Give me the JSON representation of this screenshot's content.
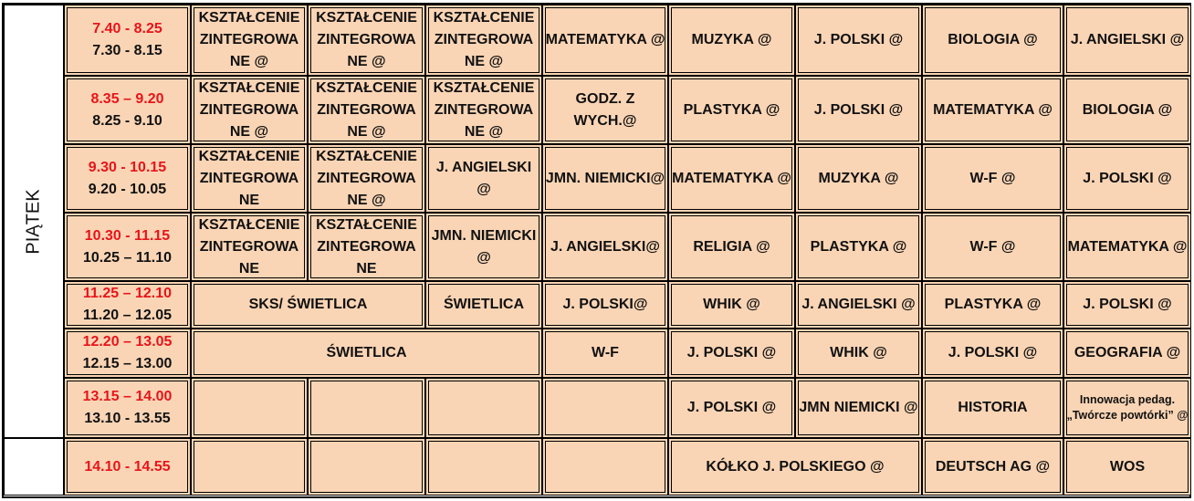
{
  "day_label": "PIĄTEK",
  "colors": {
    "cell_fill": "#FAD5B5",
    "time_red": "#E8141A"
  },
  "rows": [
    {
      "time_red": "7.40 - 8.25",
      "time_black": "7.30 - 8.15",
      "cells": [
        {
          "label": "KSZTAŁCENIE ZINTEGROWA NE @",
          "span": 1
        },
        {
          "label": "KSZTAŁCENIE ZINTEGROWA NE @",
          "span": 1
        },
        {
          "label": "KSZTAŁCENIE ZINTEGROWA NE @",
          "span": 1
        },
        {
          "label": "MATEMATYKA @",
          "span": 1
        },
        {
          "label": "MUZYKA  @",
          "span": 1
        },
        {
          "label": "J. POLSKI  @",
          "span": 1
        },
        {
          "label": "BIOLOGIA  @",
          "span": 1
        },
        {
          "label": "J. ANGIELSKI @",
          "span": 1
        }
      ]
    },
    {
      "time_red": "8.35 – 9.20",
      "time_black": "8.25 - 9.10",
      "cells": [
        {
          "label": "KSZTAŁCENIE ZINTEGROWA NE @",
          "span": 1
        },
        {
          "label": "KSZTAŁCENIE ZINTEGROWA NE @",
          "span": 1
        },
        {
          "label": "KSZTAŁCENIE ZINTEGROWA NE @",
          "span": 1
        },
        {
          "label": "GODZ. Z WYCH.@",
          "span": 1
        },
        {
          "label": "PLASTYKA  @",
          "span": 1
        },
        {
          "label": "J. POLSKI  @",
          "span": 1
        },
        {
          "label": "MATEMATYKA @",
          "span": 1
        },
        {
          "label": "BIOLOGIA  @",
          "span": 1
        }
      ]
    },
    {
      "time_red": "9.30 - 10.15",
      "time_black": "9.20 - 10.05",
      "cells": [
        {
          "label": "KSZTAŁCENIE ZINTEGROWA NE",
          "span": 1
        },
        {
          "label": "KSZTAŁCENIE ZINTEGROWA NE @",
          "span": 1
        },
        {
          "label": "J. ANGIELSKI @",
          "span": 1
        },
        {
          "label": "JMN. NIEMICKI@",
          "span": 1
        },
        {
          "label": "MATEMATYKA @",
          "span": 1
        },
        {
          "label": "MUZYKA  @",
          "span": 1
        },
        {
          "label": "W-F  @",
          "span": 1
        },
        {
          "label": "J. POLSKI  @",
          "span": 1
        }
      ]
    },
    {
      "time_red": "10.30 - 11.15",
      "time_black": "10.25 – 11.10",
      "cells": [
        {
          "label": "KSZTAŁCENIE ZINTEGROWA NE",
          "span": 1
        },
        {
          "label": "KSZTAŁCENIE ZINTEGROWA NE",
          "span": 1
        },
        {
          "label": "JMN. NIEMICKI @",
          "span": 1
        },
        {
          "label": "J. ANGIELSKI@",
          "span": 1
        },
        {
          "label": "RELIGIA  @",
          "span": 1
        },
        {
          "label": "PLASTYKA  @",
          "span": 1
        },
        {
          "label": "W-F  @",
          "span": 1
        },
        {
          "label": "MATEMATYKA @",
          "span": 1
        }
      ]
    },
    {
      "time_red": "11.25 – 12.10",
      "time_black": "11.20 – 12.05",
      "cells": [
        {
          "label": "SKS/ ŚWIETLICA",
          "span": 2
        },
        {
          "label": "ŚWIETLICA",
          "span": 1
        },
        {
          "label": "J. POLSKI@",
          "span": 1
        },
        {
          "label": "WHIK  @",
          "span": 1
        },
        {
          "label": "J. ANGIELSKI  @",
          "span": 1
        },
        {
          "label": "PLASTYKA  @",
          "span": 1
        },
        {
          "label": "J. POLSKI    @",
          "span": 1
        }
      ]
    },
    {
      "time_red": "12.20 – 13.05",
      "time_black": "12.15 – 13.00",
      "cells": [
        {
          "label": "ŚWIETLICA",
          "span": 3
        },
        {
          "label": "W-F",
          "span": 1
        },
        {
          "label": "J. POLSKI  @",
          "span": 1
        },
        {
          "label": "WHIK  @",
          "span": 1
        },
        {
          "label": "J. POLSKI  @",
          "span": 1
        },
        {
          "label": "GEOGRAFIA @",
          "span": 1
        }
      ]
    },
    {
      "time_red": "13.15 – 14.00",
      "time_black": "13.10 - 13.55",
      "cells": [
        {
          "label": "",
          "span": 1
        },
        {
          "label": "",
          "span": 1
        },
        {
          "label": "",
          "span": 1
        },
        {
          "label": "",
          "span": 1
        },
        {
          "label": "J. POLSKI  @",
          "span": 1
        },
        {
          "label": "JMN NIEMICKI @",
          "span": 1
        },
        {
          "label": "HISTORIA",
          "span": 1
        },
        {
          "label": "Innowacja pedag. „Twórcze powtórki”  @",
          "span": 1,
          "small": true
        }
      ]
    },
    {
      "time_red": "14.10 - 14.55",
      "time_black": "",
      "cells": [
        {
          "label": "",
          "span": 1
        },
        {
          "label": "",
          "span": 1
        },
        {
          "label": "",
          "span": 1
        },
        {
          "label": "",
          "span": 1
        },
        {
          "label": "KÓŁKO J. POLSKIEGO  @",
          "span": 2
        },
        {
          "label": "DEUTSCH AG  @",
          "span": 1
        },
        {
          "label": "WOS",
          "span": 1
        }
      ]
    }
  ]
}
